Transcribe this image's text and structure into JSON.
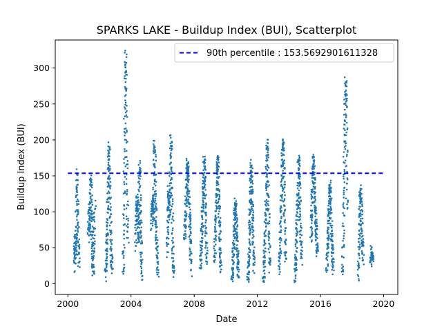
{
  "chart_data": {
    "type": "scatter",
    "title": "SPARKS LAKE - Buildup Index (BUI), Scatterplot",
    "xlabel": "Date",
    "ylabel": "Buildup Index (BUI)",
    "xlim": [
      1999.2,
      2020.9
    ],
    "ylim": [
      -15,
      339
    ],
    "x_ticks": [
      2000,
      2004,
      2008,
      2012,
      2016,
      2020
    ],
    "x_tick_labels": [
      "2000",
      "2004",
      "2008",
      "2012",
      "2016",
      "2020"
    ],
    "y_ticks": [
      0,
      50,
      100,
      150,
      200,
      250,
      300
    ],
    "y_tick_labels": [
      "0",
      "50",
      "100",
      "150",
      "200",
      "250",
      "300"
    ],
    "grid": false,
    "legend_position": "top-right",
    "reference_line": {
      "label": "90th percentile : 153.5692901611328",
      "value": 153.5692901611328,
      "x_range": [
        2000.0,
        2020.0
      ],
      "color": "#0000ff",
      "style": "dashed"
    },
    "point_color": "#1f77b4",
    "season_profiles": [
      {
        "year": 2000,
        "x_start": 2000.4,
        "x_end": 2000.7,
        "values": [
          30,
          55,
          18,
          45,
          70,
          60,
          40,
          95,
          120,
          155,
          130,
          100,
          80,
          60,
          40,
          25
        ]
      },
      {
        "year": 2001,
        "x_start": 2001.3,
        "x_end": 2001.7,
        "values": [
          60,
          90,
          110,
          80,
          70,
          100,
          140,
          150,
          120,
          95,
          70,
          50,
          30,
          15,
          40,
          60,
          90,
          110
        ]
      },
      {
        "year": 2002,
        "x_start": 2002.4,
        "x_end": 2002.8,
        "values": [
          8,
          25,
          45,
          60,
          80,
          110,
          140,
          170,
          192,
          160,
          130,
          100,
          70,
          50,
          30,
          15
        ]
      },
      {
        "year": 2003,
        "x_start": 2003.5,
        "x_end": 2003.8,
        "values": [
          12,
          40,
          80,
          130,
          180,
          240,
          290,
          322,
          280,
          230,
          180,
          130,
          90,
          60
        ]
      },
      {
        "year": 2004,
        "x_start": 2004.3,
        "x_end": 2004.7,
        "values": [
          50,
          80,
          100,
          120,
          110,
          90,
          70,
          60,
          140,
          168,
          120,
          90,
          60,
          30,
          5
        ]
      },
      {
        "year": 2005,
        "x_start": 2005.3,
        "x_end": 2005.7,
        "values": [
          80,
          100,
          120,
          110,
          90,
          150,
          198,
          170,
          130,
          100,
          70,
          50,
          30,
          10
        ]
      },
      {
        "year": 2006,
        "x_start": 2006.3,
        "x_end": 2006.7,
        "values": [
          40,
          70,
          100,
          130,
          110,
          90,
          120,
          160,
          203,
          180,
          140,
          100,
          60,
          30,
          10
        ]
      },
      {
        "year": 2007,
        "x_start": 2007.4,
        "x_end": 2007.8,
        "values": [
          60,
          80,
          100,
          120,
          140,
          160,
          167,
          150,
          130,
          110,
          90,
          70,
          50,
          15
        ]
      },
      {
        "year": 2008,
        "x_start": 2008.4,
        "x_end": 2008.8,
        "values": [
          20,
          40,
          60,
          80,
          100,
          120,
          140,
          175,
          150,
          120,
          90,
          60,
          30
        ]
      },
      {
        "year": 2009,
        "x_start": 2009.3,
        "x_end": 2009.7,
        "values": [
          30,
          60,
          90,
          120,
          150,
          175,
          160,
          130,
          100,
          70,
          40,
          20
        ]
      },
      {
        "year": 2010,
        "x_start": 2010.4,
        "x_end": 2010.8,
        "values": [
          5,
          20,
          40,
          60,
          80,
          100,
          115,
          90,
          70,
          50,
          30,
          10
        ]
      },
      {
        "year": 2011,
        "x_start": 2011.4,
        "x_end": 2011.8,
        "values": [
          3,
          20,
          40,
          70,
          100,
          130,
          166,
          140,
          110,
          80,
          50,
          20
        ]
      },
      {
        "year": 2012,
        "x_start": 2012.4,
        "x_end": 2012.8,
        "values": [
          5,
          25,
          50,
          80,
          110,
          150,
          197,
          170,
          130,
          90,
          50,
          20
        ]
      },
      {
        "year": 2013,
        "x_start": 2013.4,
        "x_end": 2013.8,
        "values": [
          15,
          40,
          70,
          100,
          130,
          160,
          203,
          180,
          140,
          100,
          60,
          30
        ]
      },
      {
        "year": 2014,
        "x_start": 2014.4,
        "x_end": 2014.8,
        "values": [
          5,
          25,
          50,
          80,
          110,
          140,
          178,
          150,
          120,
          90,
          60,
          30
        ]
      },
      {
        "year": 2015,
        "x_start": 2015.4,
        "x_end": 2015.8,
        "values": [
          60,
          90,
          120,
          150,
          176,
          150,
          120,
          100,
          80,
          60,
          40
        ]
      },
      {
        "year": 2016,
        "x_start": 2016.4,
        "x_end": 2016.8,
        "values": [
          15,
          40,
          60,
          80,
          100,
          120,
          138,
          110,
          80,
          60,
          40,
          20
        ]
      },
      {
        "year": 2017,
        "x_start": 2017.4,
        "x_end": 2017.7,
        "values": [
          10,
          40,
          70,
          110,
          150,
          190,
          230,
          260,
          282,
          250,
          200,
          150,
          100
        ]
      },
      {
        "year": 2018,
        "x_start": 2018.4,
        "x_end": 2018.7,
        "values": [
          8,
          30,
          60,
          90,
          120,
          133,
          110,
          90,
          70,
          50,
          30
        ]
      },
      {
        "year": 2019,
        "x_start": 2019.2,
        "x_end": 2019.3,
        "values": [
          30,
          38,
          48,
          40,
          32
        ]
      }
    ]
  },
  "legend": {
    "entries": [
      {
        "label": "90th percentile : 153.5692901611328",
        "color": "#0000ff"
      }
    ]
  }
}
